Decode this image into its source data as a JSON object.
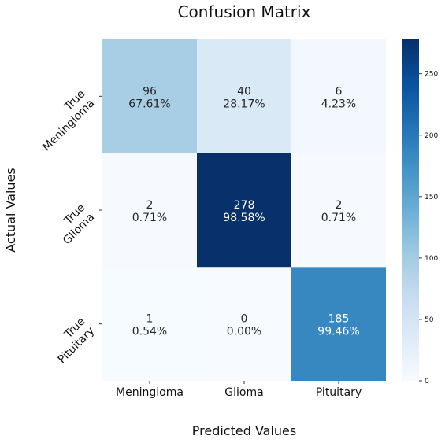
{
  "chart_data": {
    "type": "heatmap",
    "title": "Confusion Matrix",
    "xlabel": "Predicted Values",
    "ylabel": "Actual Values",
    "x_categories": [
      "Meningioma",
      "Glioma",
      "Pituitary"
    ],
    "y_categories": [
      [
        "True",
        "Meningioma"
      ],
      [
        "True",
        "Glioma"
      ],
      [
        "True",
        "Pituitary"
      ]
    ],
    "values": [
      [
        96,
        40,
        6
      ],
      [
        2,
        278,
        2
      ],
      [
        1,
        0,
        185
      ]
    ],
    "percentages": [
      [
        "67.61%",
        "28.17%",
        "4.23%"
      ],
      [
        "0.71%",
        "98.58%",
        "0.71%"
      ],
      [
        "0.54%",
        "0.00%",
        "99.46%"
      ]
    ],
    "colorbar": {
      "colormap": "Blues",
      "range": [
        0,
        278
      ],
      "ticks": [
        0,
        50,
        100,
        150,
        200,
        250
      ]
    }
  }
}
